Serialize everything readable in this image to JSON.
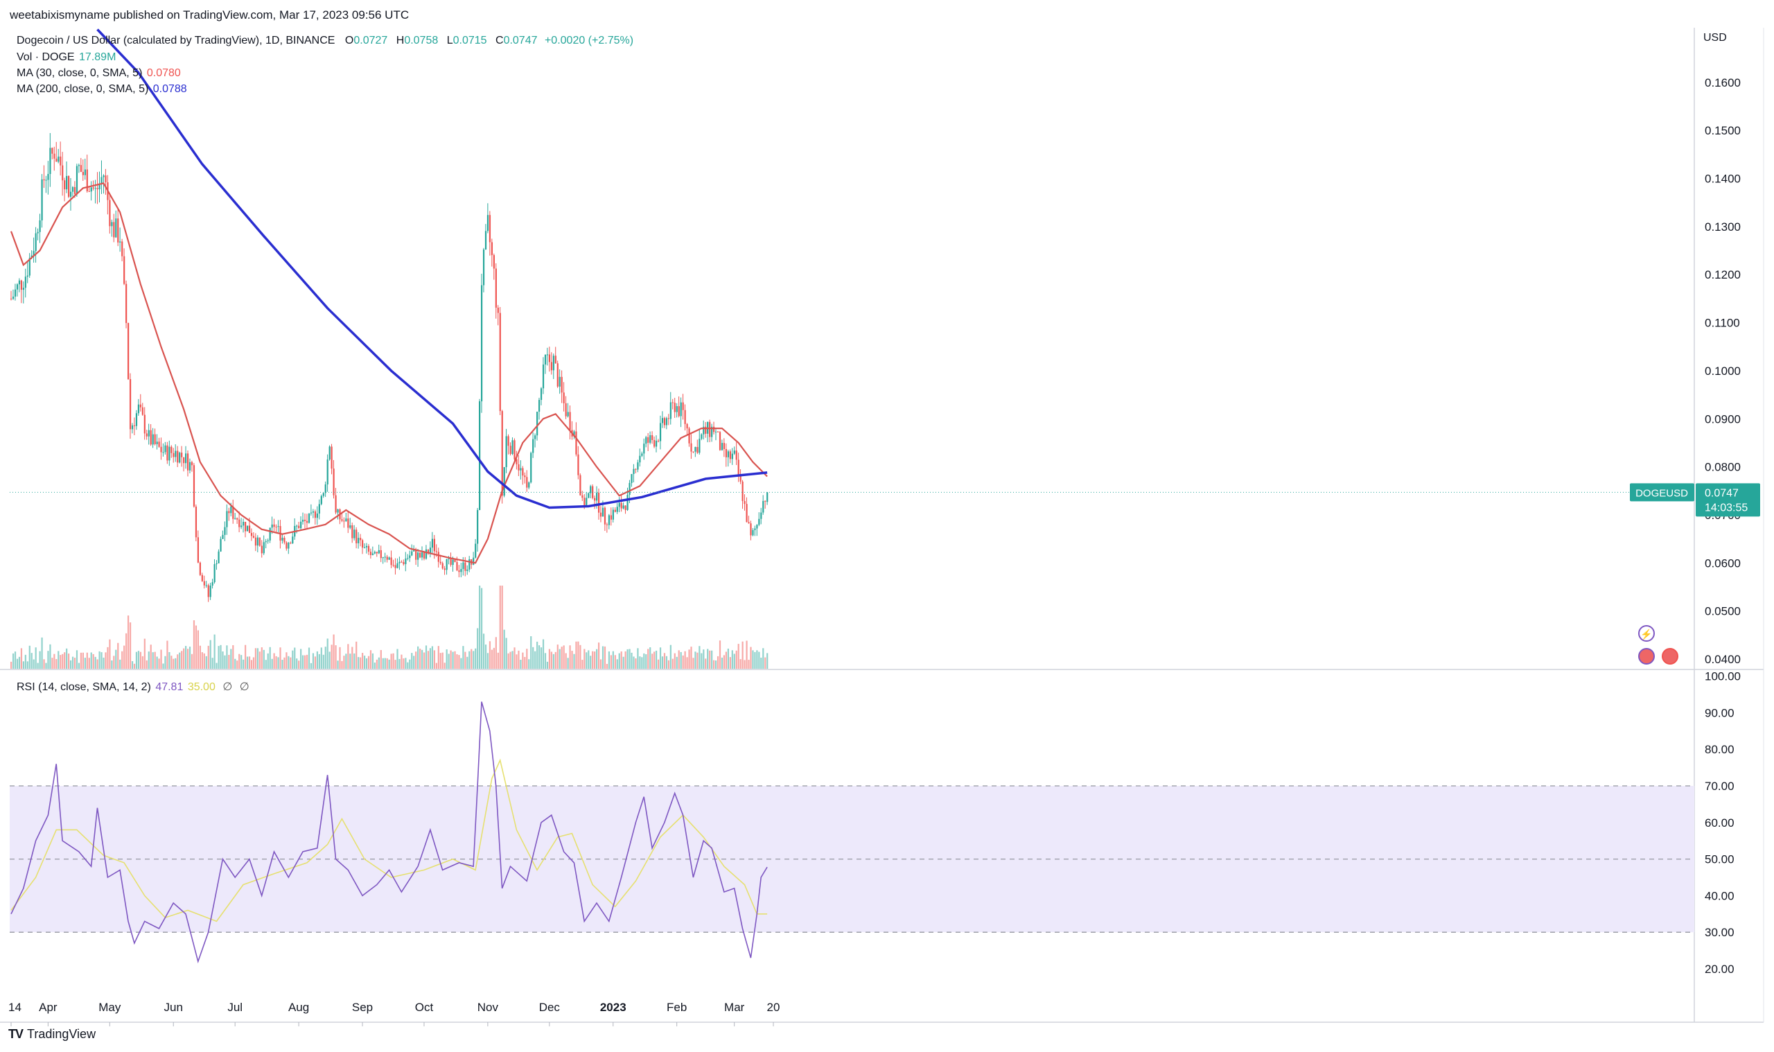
{
  "header": {
    "published_by": "weetabixismyname published on TradingView.com, Mar 17, 2023 09:56 UTC"
  },
  "legend": {
    "symbol": "Dogecoin / US Dollar (calculated by TradingView), 1D, BINANCE",
    "o_label": "O",
    "o_value": "0.0727",
    "h_label": "H",
    "h_value": "0.0758",
    "l_label": "L",
    "l_value": "0.0715",
    "c_label": "C",
    "c_value": "0.0747",
    "change": "+0.0020 (+2.75%)",
    "vol_label": "Vol · DOGE",
    "vol_value": "17.89M",
    "ma30_label": "MA (30, close, 0, SMA, 5)",
    "ma30_value": "0.0780",
    "ma200_label": "MA (200, close, 0, SMA, 5)",
    "ma200_value": "0.0788",
    "rsi_label": "RSI (14, close, SMA, 14, 2)",
    "rsi_value": "47.81",
    "rsi_ma_value": "35.00",
    "hidden_1": "∅",
    "hidden_2": "∅"
  },
  "price_axis": {
    "currency": "USD"
  },
  "last_price_tag": {
    "symbol": "DOGEUSD",
    "price": "0.0747",
    "countdown": "14:03:55"
  },
  "brand": {
    "logo": "TV",
    "name": "TradingView"
  },
  "colors": {
    "up": "#26a69a",
    "down": "#ef5350",
    "ma30": "#d9534f",
    "ma200": "#2a2ed0",
    "rsi": "#7e57c2",
    "rsi_ma": "#e6e070",
    "rsi_band": "#ede9fb"
  },
  "chart_data": {
    "type": "candlestick",
    "timeframe": "1D",
    "exchange": "BINANCE",
    "x_ticks": [
      "14",
      "Apr",
      "May",
      "Jun",
      "Jul",
      "Aug",
      "Sep",
      "Oct",
      "Nov",
      "Dec",
      "2023",
      "Jan",
      "Feb",
      "Mar",
      "20"
    ],
    "y_ticks": [
      "0.1600",
      "0.1500",
      "0.1400",
      "0.1300",
      "0.1200",
      "0.1100",
      "0.1000",
      "0.0900",
      "0.0800",
      "0.0700",
      "0.0600",
      "0.0500",
      "0.0400"
    ],
    "ylim": [
      0.0385,
      0.1725
    ],
    "rsi_ticks": [
      "100.00",
      "90.00",
      "80.00",
      "70.00",
      "60.00",
      "50.00",
      "40.00",
      "30.00",
      "20.00"
    ],
    "rsi_lim": [
      14,
      100
    ],
    "rsi_levels": [
      70,
      50,
      30
    ],
    "close_points": [
      [
        "2022-03-14",
        0.115
      ],
      [
        "2022-03-21",
        0.12
      ],
      [
        "2022-03-26",
        0.128
      ],
      [
        "2022-03-30",
        0.14
      ],
      [
        "2022-04-04",
        0.146
      ],
      [
        "2022-04-08",
        0.142
      ],
      [
        "2022-04-12",
        0.137
      ],
      [
        "2022-04-16",
        0.142
      ],
      [
        "2022-04-20",
        0.14
      ],
      [
        "2022-04-24",
        0.137
      ],
      [
        "2022-04-28",
        0.141
      ],
      [
        "2022-05-02",
        0.13
      ],
      [
        "2022-05-06",
        0.128
      ],
      [
        "2022-05-09",
        0.11
      ],
      [
        "2022-05-11",
        0.088
      ],
      [
        "2022-05-15",
        0.092
      ],
      [
        "2022-05-20",
        0.086
      ],
      [
        "2022-05-24",
        0.084
      ],
      [
        "2022-05-28",
        0.083
      ],
      [
        "2022-06-02",
        0.083
      ],
      [
        "2022-06-06",
        0.082
      ],
      [
        "2022-06-10",
        0.08
      ],
      [
        "2022-06-13",
        0.06
      ],
      [
        "2022-06-18",
        0.053
      ],
      [
        "2022-06-22",
        0.061
      ],
      [
        "2022-06-28",
        0.071
      ],
      [
        "2022-07-03",
        0.069
      ],
      [
        "2022-07-10",
        0.066
      ],
      [
        "2022-07-14",
        0.062
      ],
      [
        "2022-07-20",
        0.068
      ],
      [
        "2022-07-26",
        0.064
      ],
      [
        "2022-08-01",
        0.068
      ],
      [
        "2022-08-07",
        0.069
      ],
      [
        "2022-08-13",
        0.074
      ],
      [
        "2022-08-16",
        0.085
      ],
      [
        "2022-08-19",
        0.07
      ],
      [
        "2022-08-25",
        0.068
      ],
      [
        "2022-09-01",
        0.063
      ],
      [
        "2022-09-07",
        0.061
      ],
      [
        "2022-09-12",
        0.062
      ],
      [
        "2022-09-17",
        0.059
      ],
      [
        "2022-09-25",
        0.062
      ],
      [
        "2022-10-01",
        0.061
      ],
      [
        "2022-10-05",
        0.064
      ],
      [
        "2022-10-10",
        0.06
      ],
      [
        "2022-10-18",
        0.059
      ],
      [
        "2022-10-25",
        0.06
      ],
      [
        "2022-10-27",
        0.07
      ],
      [
        "2022-10-29",
        0.119
      ],
      [
        "2022-11-01",
        0.13
      ],
      [
        "2022-11-04",
        0.12
      ],
      [
        "2022-11-06",
        0.11
      ],
      [
        "2022-11-08",
        0.074
      ],
      [
        "2022-11-10",
        0.086
      ],
      [
        "2022-11-14",
        0.083
      ],
      [
        "2022-11-20",
        0.075
      ],
      [
        "2022-11-24",
        0.088
      ],
      [
        "2022-11-29",
        0.102
      ],
      [
        "2022-12-03",
        0.102
      ],
      [
        "2022-12-08",
        0.093
      ],
      [
        "2022-12-13",
        0.087
      ],
      [
        "2022-12-17",
        0.072
      ],
      [
        "2022-12-22",
        0.075
      ],
      [
        "2022-12-28",
        0.069
      ],
      [
        "2023-01-03",
        0.071
      ],
      [
        "2023-01-08",
        0.073
      ],
      [
        "2023-01-12",
        0.081
      ],
      [
        "2023-01-17",
        0.085
      ],
      [
        "2023-01-22",
        0.086
      ],
      [
        "2023-01-26",
        0.089
      ],
      [
        "2023-01-31",
        0.093
      ],
      [
        "2023-02-04",
        0.091
      ],
      [
        "2023-02-09",
        0.083
      ],
      [
        "2023-02-14",
        0.087
      ],
      [
        "2023-02-19",
        0.088
      ],
      [
        "2023-02-24",
        0.082
      ],
      [
        "2023-03-01",
        0.082
      ],
      [
        "2023-03-05",
        0.074
      ],
      [
        "2023-03-09",
        0.065
      ],
      [
        "2023-03-12",
        0.068
      ],
      [
        "2023-03-14",
        0.072
      ],
      [
        "2023-03-17",
        0.0747
      ]
    ],
    "ma30_points": [
      [
        "2022-03-14",
        0.129
      ],
      [
        "2022-03-20",
        0.122
      ],
      [
        "2022-03-28",
        0.125
      ],
      [
        "2022-04-08",
        0.134
      ],
      [
        "2022-04-18",
        0.138
      ],
      [
        "2022-04-28",
        0.139
      ],
      [
        "2022-05-06",
        0.133
      ],
      [
        "2022-05-16",
        0.118
      ],
      [
        "2022-05-26",
        0.105
      ],
      [
        "2022-06-06",
        0.092
      ],
      [
        "2022-06-14",
        0.081
      ],
      [
        "2022-06-24",
        0.074
      ],
      [
        "2022-07-04",
        0.07
      ],
      [
        "2022-07-14",
        0.067
      ],
      [
        "2022-07-24",
        0.066
      ],
      [
        "2022-08-04",
        0.067
      ],
      [
        "2022-08-14",
        0.068
      ],
      [
        "2022-08-24",
        0.071
      ],
      [
        "2022-09-04",
        0.068
      ],
      [
        "2022-09-14",
        0.066
      ],
      [
        "2022-09-24",
        0.063
      ],
      [
        "2022-10-04",
        0.062
      ],
      [
        "2022-10-14",
        0.061
      ],
      [
        "2022-10-26",
        0.06
      ],
      [
        "2022-11-01",
        0.065
      ],
      [
        "2022-11-08",
        0.075
      ],
      [
        "2022-11-18",
        0.085
      ],
      [
        "2022-11-28",
        0.09
      ],
      [
        "2022-12-04",
        0.091
      ],
      [
        "2022-12-14",
        0.086
      ],
      [
        "2022-12-24",
        0.08
      ],
      [
        "2023-01-04",
        0.074
      ],
      [
        "2023-01-14",
        0.076
      ],
      [
        "2023-01-24",
        0.081
      ],
      [
        "2023-02-03",
        0.086
      ],
      [
        "2023-02-13",
        0.088
      ],
      [
        "2023-02-23",
        0.088
      ],
      [
        "2023-03-03",
        0.085
      ],
      [
        "2023-03-10",
        0.081
      ],
      [
        "2023-03-17",
        0.078
      ]
    ],
    "ma200_points": [
      [
        "2022-04-25",
        0.171
      ],
      [
        "2022-05-15",
        0.162
      ],
      [
        "2022-06-15",
        0.143
      ],
      [
        "2022-07-15",
        0.128
      ],
      [
        "2022-08-15",
        0.113
      ],
      [
        "2022-09-15",
        0.1
      ],
      [
        "2022-10-15",
        0.089
      ],
      [
        "2022-11-01",
        0.079
      ],
      [
        "2022-11-15",
        0.074
      ],
      [
        "2022-12-01",
        0.0715
      ],
      [
        "2022-12-20",
        0.0718
      ],
      [
        "2023-01-15",
        0.0737
      ],
      [
        "2023-02-15",
        0.0775
      ],
      [
        "2023-03-17",
        0.0788
      ]
    ],
    "rsi_points": [
      [
        "2022-03-14",
        35
      ],
      [
        "2022-03-20",
        42
      ],
      [
        "2022-03-26",
        55
      ],
      [
        "2022-04-01",
        62
      ],
      [
        "2022-04-05",
        76
      ],
      [
        "2022-04-08",
        55
      ],
      [
        "2022-04-16",
        52
      ],
      [
        "2022-04-22",
        48
      ],
      [
        "2022-04-25",
        64
      ],
      [
        "2022-04-30",
        45
      ],
      [
        "2022-05-06",
        47
      ],
      [
        "2022-05-10",
        33
      ],
      [
        "2022-05-13",
        27
      ],
      [
        "2022-05-18",
        33
      ],
      [
        "2022-05-25",
        31
      ],
      [
        "2022-06-01",
        38
      ],
      [
        "2022-06-07",
        35
      ],
      [
        "2022-06-13",
        22
      ],
      [
        "2022-06-18",
        30
      ],
      [
        "2022-06-25",
        50
      ],
      [
        "2022-07-01",
        45
      ],
      [
        "2022-07-08",
        50
      ],
      [
        "2022-07-14",
        40
      ],
      [
        "2022-07-20",
        52
      ],
      [
        "2022-07-27",
        45
      ],
      [
        "2022-08-03",
        52
      ],
      [
        "2022-08-10",
        53
      ],
      [
        "2022-08-15",
        73
      ],
      [
        "2022-08-19",
        50
      ],
      [
        "2022-08-25",
        47
      ],
      [
        "2022-09-01",
        40
      ],
      [
        "2022-09-08",
        43
      ],
      [
        "2022-09-14",
        47
      ],
      [
        "2022-09-20",
        41
      ],
      [
        "2022-09-28",
        48
      ],
      [
        "2022-10-04",
        58
      ],
      [
        "2022-10-10",
        47
      ],
      [
        "2022-10-18",
        49
      ],
      [
        "2022-10-25",
        48
      ],
      [
        "2022-10-27",
        70
      ],
      [
        "2022-10-29",
        93
      ],
      [
        "2022-11-02",
        85
      ],
      [
        "2022-11-05",
        70
      ],
      [
        "2022-11-08",
        42
      ],
      [
        "2022-11-12",
        48
      ],
      [
        "2022-11-20",
        44
      ],
      [
        "2022-11-27",
        60
      ],
      [
        "2022-12-02",
        62
      ],
      [
        "2022-12-08",
        52
      ],
      [
        "2022-12-13",
        49
      ],
      [
        "2022-12-18",
        33
      ],
      [
        "2022-12-24",
        38
      ],
      [
        "2022-12-30",
        33
      ],
      [
        "2023-01-05",
        45
      ],
      [
        "2023-01-12",
        60
      ],
      [
        "2023-01-16",
        67
      ],
      [
        "2023-01-20",
        53
      ],
      [
        "2023-01-26",
        60
      ],
      [
        "2023-01-31",
        68
      ],
      [
        "2023-02-04",
        62
      ],
      [
        "2023-02-09",
        45
      ],
      [
        "2023-02-14",
        55
      ],
      [
        "2023-02-18",
        53
      ],
      [
        "2023-02-24",
        41
      ],
      [
        "2023-03-01",
        42
      ],
      [
        "2023-03-05",
        31
      ],
      [
        "2023-03-09",
        23
      ],
      [
        "2023-03-12",
        35
      ],
      [
        "2023-03-14",
        45
      ],
      [
        "2023-03-17",
        47.81
      ]
    ],
    "rsi_ma_points": [
      [
        "2022-03-14",
        36
      ],
      [
        "2022-03-26",
        45
      ],
      [
        "2022-04-05",
        58
      ],
      [
        "2022-04-15",
        58
      ],
      [
        "2022-04-28",
        51
      ],
      [
        "2022-05-08",
        49
      ],
      [
        "2022-05-18",
        40
      ],
      [
        "2022-05-28",
        34
      ],
      [
        "2022-06-08",
        36
      ],
      [
        "2022-06-22",
        33
      ],
      [
        "2022-07-05",
        43
      ],
      [
        "2022-07-20",
        46
      ],
      [
        "2022-08-05",
        49
      ],
      [
        "2022-08-15",
        54
      ],
      [
        "2022-08-22",
        61
      ],
      [
        "2022-09-02",
        50
      ],
      [
        "2022-09-15",
        45
      ],
      [
        "2022-10-01",
        47
      ],
      [
        "2022-10-15",
        50
      ],
      [
        "2022-10-26",
        47
      ],
      [
        "2022-11-03",
        72
      ],
      [
        "2022-11-07",
        77
      ],
      [
        "2022-11-15",
        58
      ],
      [
        "2022-11-25",
        47
      ],
      [
        "2022-12-05",
        56
      ],
      [
        "2022-12-12",
        57
      ],
      [
        "2022-12-22",
        43
      ],
      [
        "2023-01-02",
        37
      ],
      [
        "2023-01-12",
        44
      ],
      [
        "2023-01-24",
        56
      ],
      [
        "2023-02-04",
        62
      ],
      [
        "2023-02-14",
        56
      ],
      [
        "2023-02-24",
        48
      ],
      [
        "2023-03-06",
        43
      ],
      [
        "2023-03-12",
        35
      ],
      [
        "2023-03-17",
        35.0
      ]
    ]
  }
}
